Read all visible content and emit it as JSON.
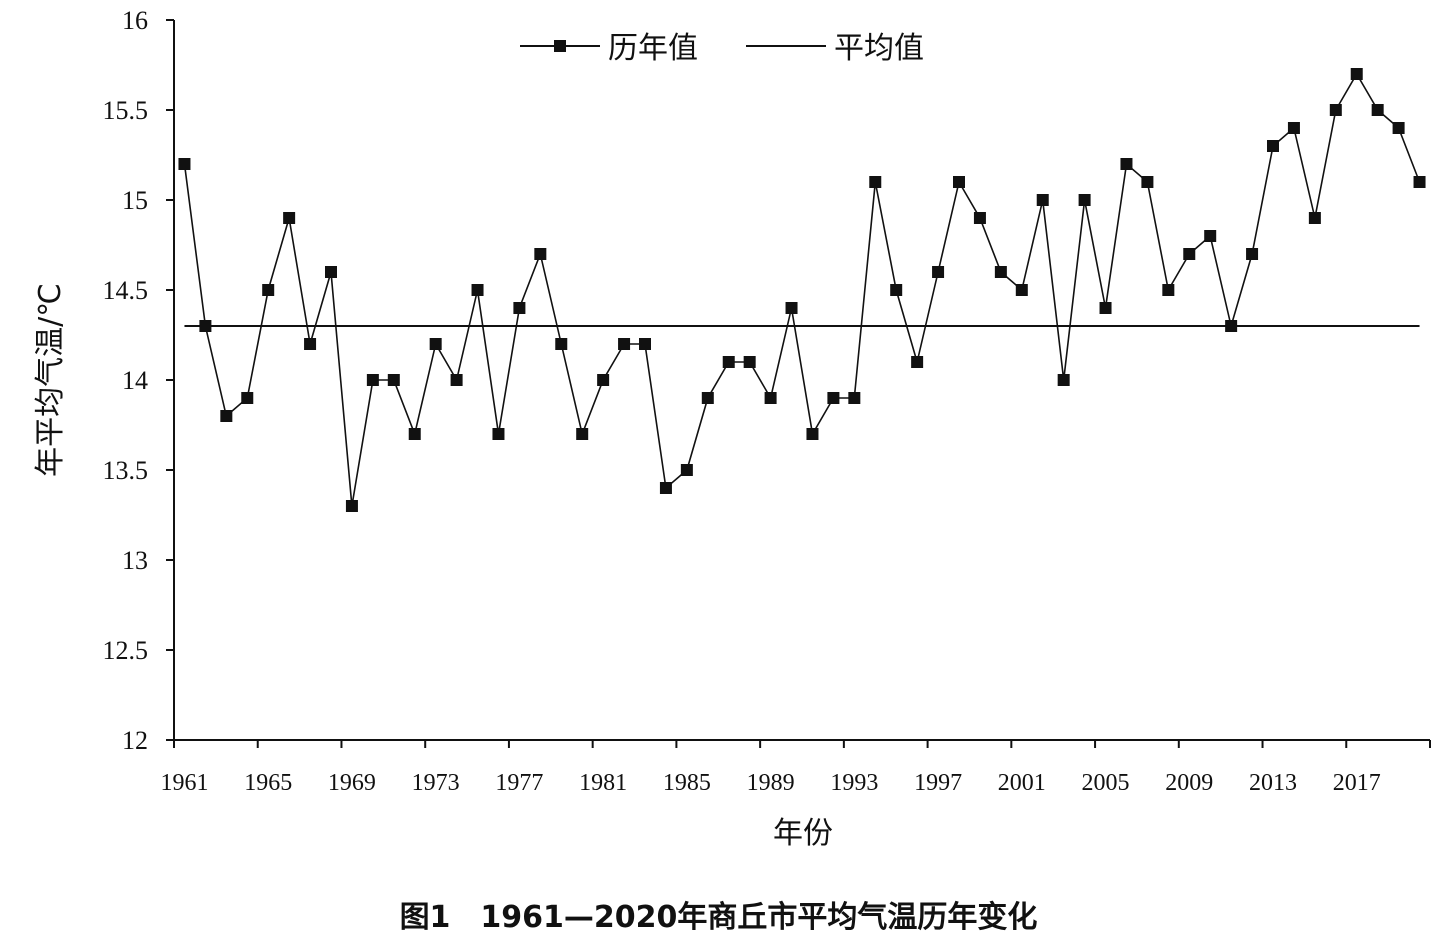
{
  "caption": "图1　1961—2020年商丘市平均气温历年变化",
  "chart_data": {
    "type": "line",
    "title": "",
    "xlabel": "年份",
    "ylabel": "年平均气温/℃",
    "ylim": [
      12,
      16
    ],
    "yticks": [
      "12",
      "12.5",
      "13",
      "13.5",
      "14",
      "14.5",
      "15",
      "15.5",
      "16"
    ],
    "xticks": [
      "1961",
      "1965",
      "1969",
      "1973",
      "1977",
      "1981",
      "1985",
      "1989",
      "1993",
      "1997",
      "2001",
      "2005",
      "2009",
      "2013",
      "2017"
    ],
    "grid": false,
    "legend_position": "top-center",
    "x": [
      1961,
      1962,
      1963,
      1964,
      1965,
      1966,
      1967,
      1968,
      1969,
      1970,
      1971,
      1972,
      1973,
      1974,
      1975,
      1976,
      1977,
      1978,
      1979,
      1980,
      1981,
      1982,
      1983,
      1984,
      1985,
      1986,
      1987,
      1988,
      1989,
      1990,
      1991,
      1992,
      1993,
      1994,
      1995,
      1996,
      1997,
      1998,
      1999,
      2000,
      2001,
      2002,
      2003,
      2004,
      2005,
      2006,
      2007,
      2008,
      2009,
      2010,
      2011,
      2012,
      2013,
      2014,
      2015,
      2016,
      2017,
      2018,
      2019,
      2020
    ],
    "series": [
      {
        "name": "历年值",
        "marker": "square",
        "color": "#111111",
        "values": [
          15.2,
          14.3,
          13.8,
          13.9,
          14.5,
          14.9,
          14.2,
          14.6,
          13.3,
          14.0,
          14.0,
          13.7,
          14.2,
          14.0,
          14.5,
          13.7,
          14.4,
          14.7,
          14.2,
          13.7,
          14.0,
          14.2,
          14.2,
          13.4,
          13.5,
          13.9,
          14.1,
          14.1,
          13.9,
          14.4,
          13.7,
          13.9,
          13.9,
          15.1,
          14.5,
          14.1,
          14.6,
          15.1,
          14.9,
          14.6,
          14.5,
          15.0,
          14.0,
          15.0,
          14.4,
          15.2,
          15.1,
          14.5,
          14.7,
          14.8,
          14.3,
          14.7,
          15.3,
          15.4,
          14.9,
          15.5,
          15.7,
          15.5,
          15.4,
          15.1
        ]
      },
      {
        "name": "平均值",
        "marker": "none",
        "color": "#111111",
        "constant": 14.3
      }
    ]
  }
}
